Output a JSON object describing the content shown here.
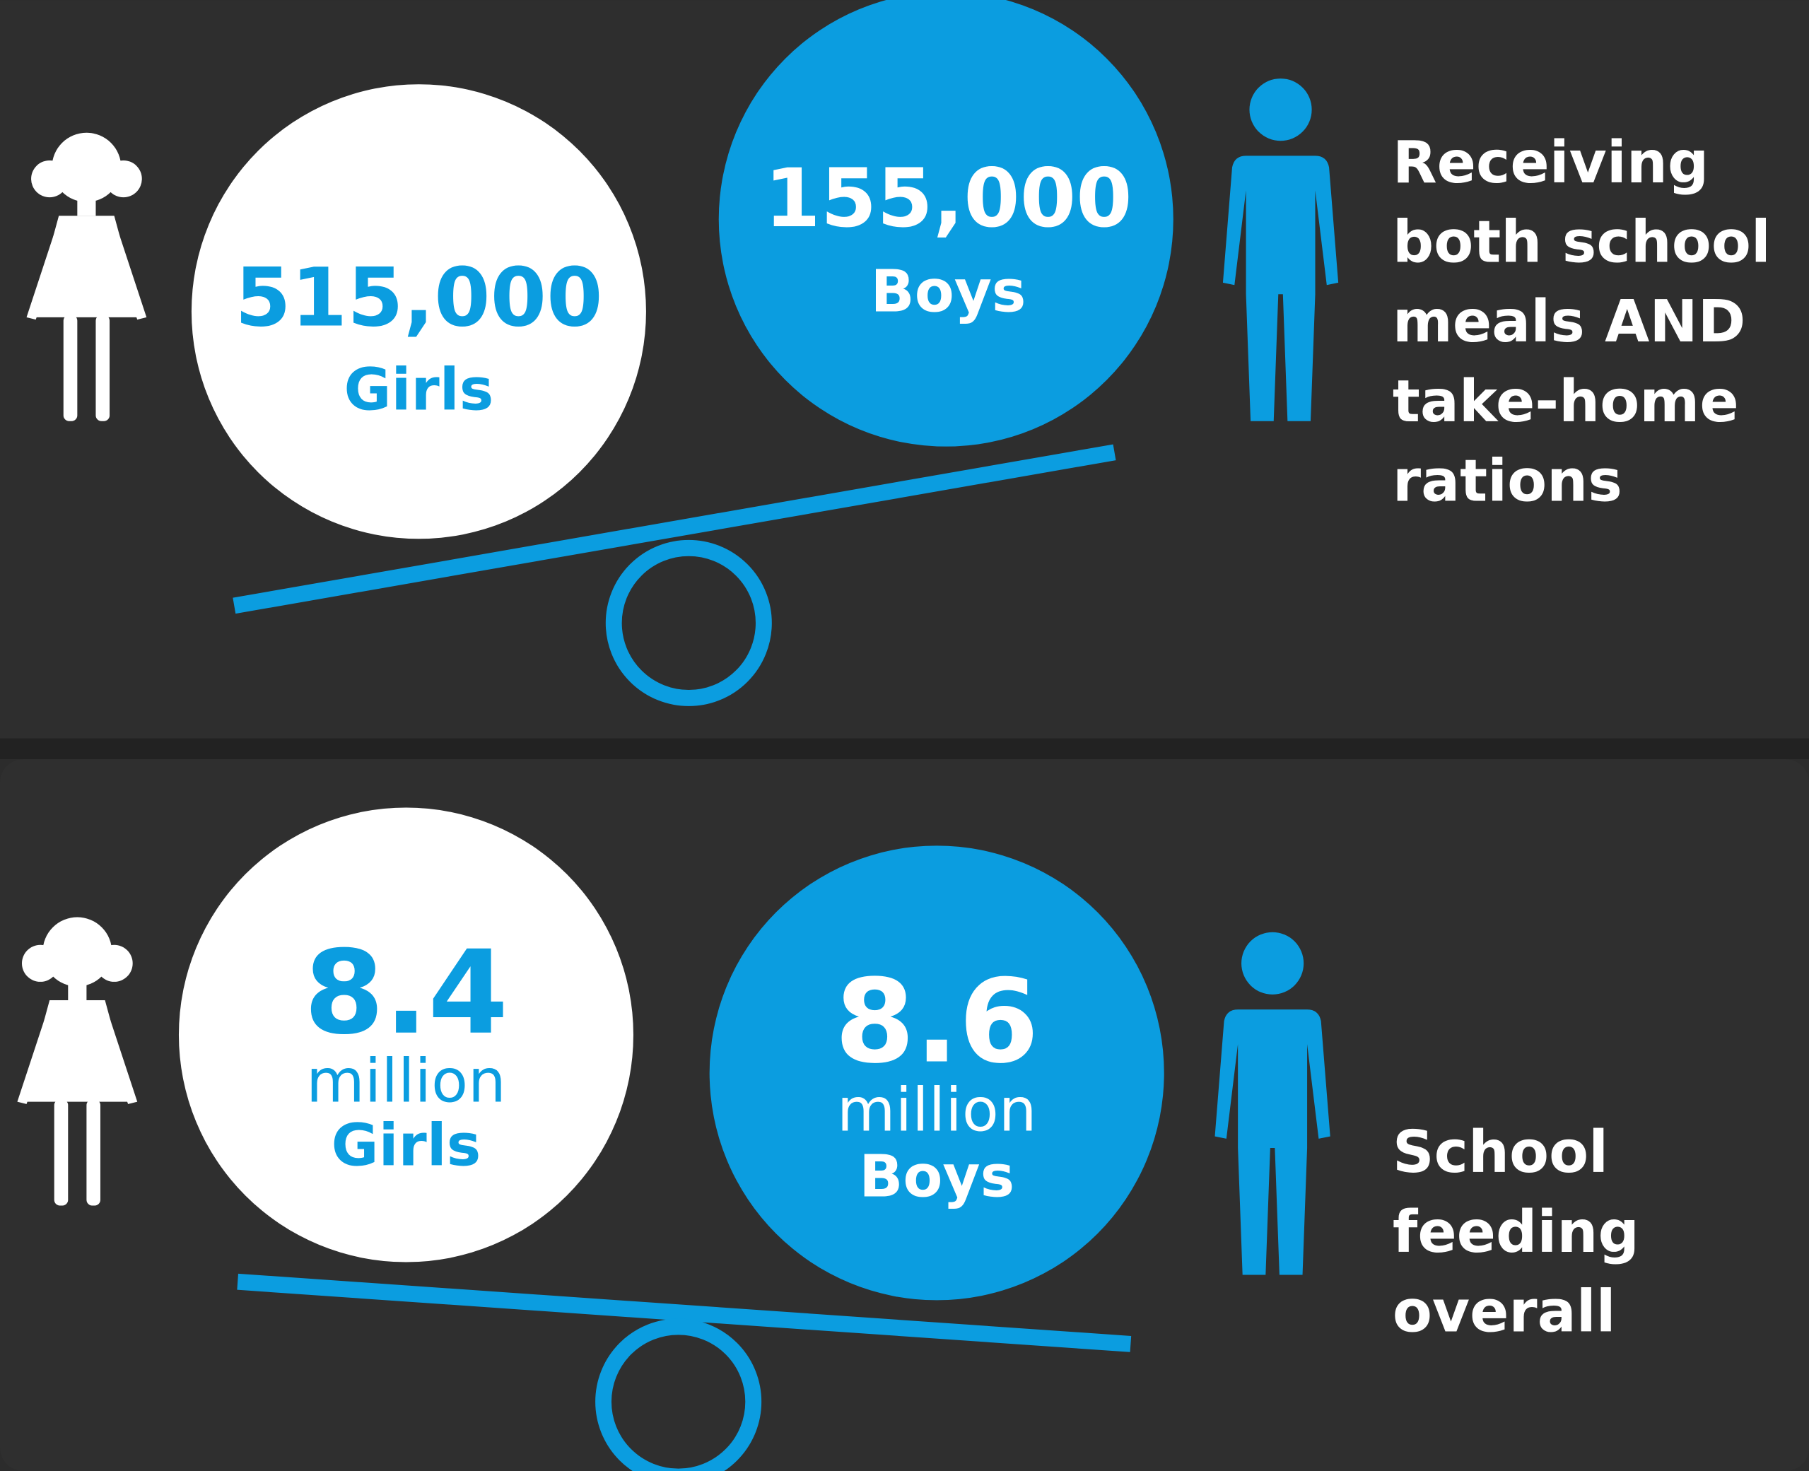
{
  "panels": [
    {
      "girls": {
        "value": "515,000",
        "label": "Girls"
      },
      "boys": {
        "value": "155,000",
        "label": "Boys"
      },
      "caption": [
        "Receiving",
        "both school",
        "meals AND",
        "take-home",
        "rations"
      ]
    },
    {
      "girls": {
        "value": "8.4",
        "unit": "million",
        "label": "Girls"
      },
      "boys": {
        "value": "8.6",
        "unit": "million",
        "label": "Boys"
      },
      "caption": [
        "School",
        "feeding",
        "overall"
      ]
    }
  ]
}
